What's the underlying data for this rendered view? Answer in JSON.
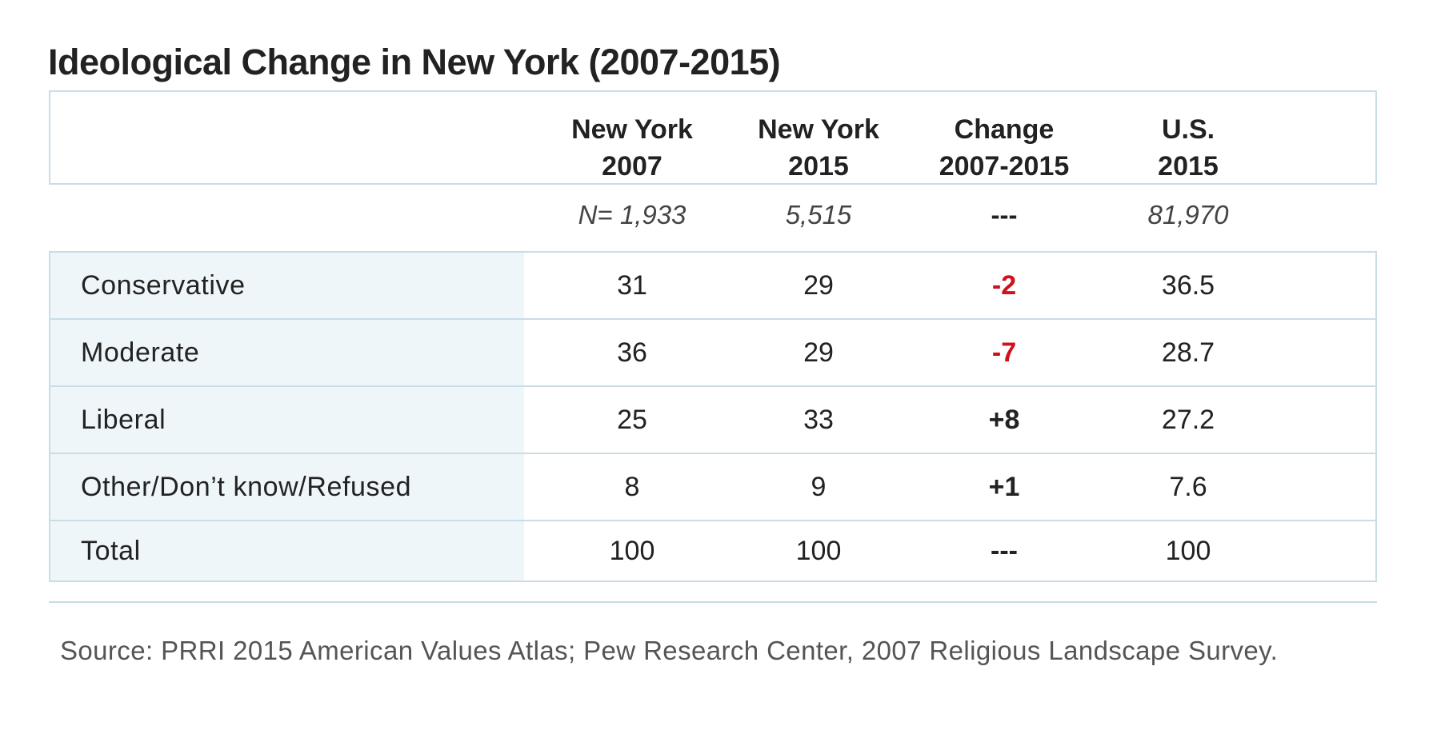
{
  "title": "Ideological Change in New York (2007-2015)",
  "columns": [
    {
      "line1": "New York",
      "line2": "2007"
    },
    {
      "line1": "New York",
      "line2": "2015"
    },
    {
      "line1": "Change",
      "line2": "2007-2015"
    },
    {
      "line1": "U.S.",
      "line2": "2015"
    }
  ],
  "sample_sizes": [
    "N= 1,933",
    "5,515",
    "---",
    "81,970"
  ],
  "rows": [
    {
      "label": "Conservative",
      "ny2007": "31",
      "ny2015": "29",
      "change": "-2",
      "us2015": "36.5",
      "change_color": "#d0101b"
    },
    {
      "label": "Moderate",
      "ny2007": "36",
      "ny2015": "29",
      "change": "-7",
      "us2015": "28.7",
      "change_color": "#d0101b"
    },
    {
      "label": "Liberal",
      "ny2007": "25",
      "ny2015": "33",
      "change": "+8",
      "us2015": "27.2",
      "change_color": "#222222"
    },
    {
      "label": "Other/Don’t know/Refused",
      "ny2007": "8",
      "ny2015": "9",
      "change": "+1",
      "us2015": "7.6",
      "change_color": "#222222"
    },
    {
      "label": "Total",
      "ny2007": "100",
      "ny2015": "100",
      "change": "---",
      "us2015": "100",
      "change_color": "#222222"
    }
  ],
  "source": "Source: PRRI 2015 American Values Atlas; Pew Research Center, 2007 Religious Landscape Survey.",
  "colors": {
    "border": "#c9dde7",
    "label_shade": "#eef6fa",
    "negative": "#d0101b"
  }
}
